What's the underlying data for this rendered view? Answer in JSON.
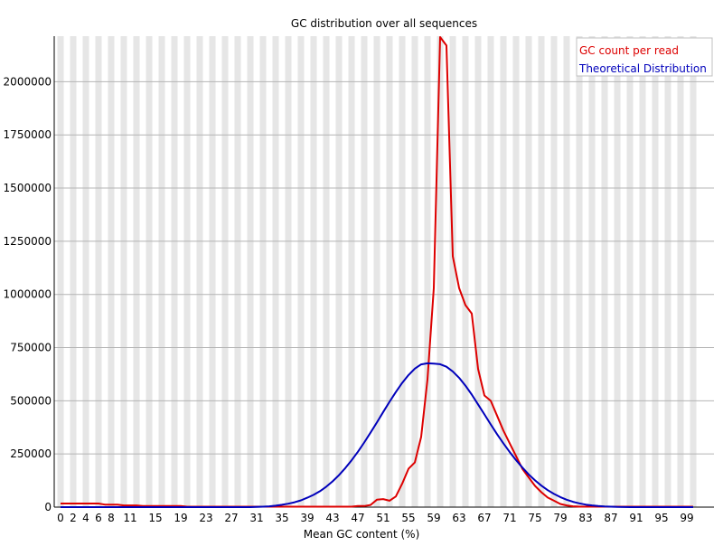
{
  "chart_data": {
    "type": "line",
    "title": "GC distribution over all sequences",
    "xlabel": "Mean GC content (%)",
    "ylabel": "",
    "xlim": [
      0,
      101
    ],
    "ylim": [
      0,
      2210000
    ],
    "grid": true,
    "legend_position": "top-right",
    "y_ticks": [
      0,
      250000,
      500000,
      750000,
      1000000,
      1250000,
      1500000,
      1750000,
      2000000
    ],
    "y_tick_labels": [
      "0",
      "250000",
      "500000",
      "750000",
      "1000000",
      "1250000",
      "1500000",
      "1750000",
      "2000000"
    ],
    "x_ticks": [
      0,
      2,
      4,
      6,
      8,
      11,
      15,
      19,
      23,
      27,
      31,
      35,
      39,
      43,
      47,
      51,
      55,
      59,
      63,
      67,
      71,
      75,
      79,
      83,
      87,
      91,
      95,
      99
    ],
    "x_tick_labels": [
      "0",
      "2",
      "4",
      "6",
      "8",
      "11",
      "15",
      "19",
      "23",
      "27",
      "31",
      "35",
      "39",
      "43",
      "47",
      "51",
      "55",
      "59",
      "63",
      "67",
      "71",
      "75",
      "79",
      "83",
      "87",
      "91",
      "95",
      "99"
    ],
    "series": [
      {
        "name": "GC count per read",
        "color": "#dd0000",
        "points": [
          [
            0,
            17000
          ],
          [
            1,
            17000
          ],
          [
            2,
            17000
          ],
          [
            3,
            17000
          ],
          [
            4,
            17000
          ],
          [
            5,
            17000
          ],
          [
            6,
            17000
          ],
          [
            7,
            12000
          ],
          [
            8,
            12000
          ],
          [
            9,
            12000
          ],
          [
            10,
            8000
          ],
          [
            11,
            8000
          ],
          [
            12,
            8000
          ],
          [
            13,
            5000
          ],
          [
            14,
            5000
          ],
          [
            15,
            5000
          ],
          [
            16,
            5000
          ],
          [
            17,
            5000
          ],
          [
            18,
            5000
          ],
          [
            19,
            5000
          ],
          [
            20,
            2000
          ],
          [
            21,
            2000
          ],
          [
            22,
            2000
          ],
          [
            23,
            2000
          ],
          [
            24,
            2000
          ],
          [
            25,
            2000
          ],
          [
            26,
            2000
          ],
          [
            27,
            2000
          ],
          [
            28,
            2000
          ],
          [
            29,
            2000
          ],
          [
            30,
            2000
          ],
          [
            31,
            2000
          ],
          [
            32,
            2000
          ],
          [
            33,
            2000
          ],
          [
            34,
            2000
          ],
          [
            35,
            2000
          ],
          [
            36,
            2000
          ],
          [
            37,
            2000
          ],
          [
            38,
            2000
          ],
          [
            39,
            2000
          ],
          [
            40,
            2000
          ],
          [
            41,
            2000
          ],
          [
            42,
            2000
          ],
          [
            43,
            2000
          ],
          [
            44,
            2000
          ],
          [
            45,
            2000
          ],
          [
            46,
            2000
          ],
          [
            47,
            5000
          ],
          [
            48,
            5000
          ],
          [
            49,
            10000
          ],
          [
            50,
            35000
          ],
          [
            51,
            38000
          ],
          [
            52,
            30000
          ],
          [
            53,
            50000
          ],
          [
            54,
            110000
          ],
          [
            55,
            180000
          ],
          [
            56,
            210000
          ],
          [
            57,
            330000
          ],
          [
            58,
            600000
          ],
          [
            59,
            1030000
          ],
          [
            60,
            2210000
          ],
          [
            61,
            2170000
          ],
          [
            62,
            1180000
          ],
          [
            63,
            1030000
          ],
          [
            64,
            950000
          ],
          [
            65,
            910000
          ],
          [
            66,
            650000
          ],
          [
            67,
            525000
          ],
          [
            68,
            500000
          ],
          [
            69,
            430000
          ],
          [
            70,
            360000
          ],
          [
            71,
            300000
          ],
          [
            72,
            240000
          ],
          [
            73,
            180000
          ],
          [
            74,
            140000
          ],
          [
            75,
            100000
          ],
          [
            76,
            70000
          ],
          [
            77,
            45000
          ],
          [
            78,
            30000
          ],
          [
            79,
            15000
          ],
          [
            80,
            8000
          ],
          [
            81,
            4000
          ],
          [
            82,
            2000
          ],
          [
            83,
            2000
          ],
          [
            84,
            2000
          ],
          [
            85,
            2000
          ],
          [
            86,
            2000
          ],
          [
            87,
            2000
          ],
          [
            88,
            2000
          ],
          [
            89,
            2000
          ],
          [
            90,
            2000
          ],
          [
            91,
            2000
          ],
          [
            92,
            2000
          ],
          [
            93,
            2000
          ],
          [
            94,
            2000
          ],
          [
            95,
            2000
          ],
          [
            96,
            2000
          ],
          [
            97,
            2000
          ],
          [
            98,
            2000
          ],
          [
            99,
            2000
          ],
          [
            100,
            2000
          ]
        ]
      },
      {
        "name": "Theoretical Distribution",
        "color": "#0000bb",
        "points": [
          [
            0,
            0
          ],
          [
            5,
            0
          ],
          [
            10,
            0
          ],
          [
            15,
            0
          ],
          [
            20,
            0
          ],
          [
            25,
            0
          ],
          [
            30,
            0
          ],
          [
            31,
            1000
          ],
          [
            32,
            2000
          ],
          [
            33,
            4000
          ],
          [
            34,
            7000
          ],
          [
            35,
            11000
          ],
          [
            36,
            16000
          ],
          [
            37,
            23000
          ],
          [
            38,
            32000
          ],
          [
            39,
            44000
          ],
          [
            40,
            58000
          ],
          [
            41,
            75000
          ],
          [
            42,
            96000
          ],
          [
            43,
            121000
          ],
          [
            44,
            150000
          ],
          [
            45,
            183000
          ],
          [
            46,
            220000
          ],
          [
            47,
            260000
          ],
          [
            48,
            304000
          ],
          [
            49,
            350000
          ],
          [
            50,
            398000
          ],
          [
            51,
            447000
          ],
          [
            52,
            495000
          ],
          [
            53,
            541000
          ],
          [
            54,
            584000
          ],
          [
            55,
            621000
          ],
          [
            56,
            651000
          ],
          [
            57,
            671000
          ],
          [
            58,
            676000
          ],
          [
            59,
            675000
          ],
          [
            60,
            672000
          ],
          [
            61,
            660000
          ],
          [
            62,
            638000
          ],
          [
            63,
            608000
          ],
          [
            64,
            571000
          ],
          [
            65,
            529000
          ],
          [
            66,
            483000
          ],
          [
            67,
            436000
          ],
          [
            68,
            389000
          ],
          [
            69,
            343000
          ],
          [
            70,
            300000
          ],
          [
            71,
            259000
          ],
          [
            72,
            221000
          ],
          [
            73,
            186000
          ],
          [
            74,
            154000
          ],
          [
            75,
            126000
          ],
          [
            76,
            101000
          ],
          [
            77,
            80000
          ],
          [
            78,
            62000
          ],
          [
            79,
            47000
          ],
          [
            80,
            35000
          ],
          [
            81,
            25000
          ],
          [
            82,
            18000
          ],
          [
            83,
            12000
          ],
          [
            84,
            8000
          ],
          [
            85,
            5000
          ],
          [
            86,
            3000
          ],
          [
            87,
            2000
          ],
          [
            88,
            1000
          ],
          [
            89,
            500
          ],
          [
            90,
            0
          ],
          [
            95,
            0
          ],
          [
            100,
            0
          ]
        ]
      }
    ]
  }
}
